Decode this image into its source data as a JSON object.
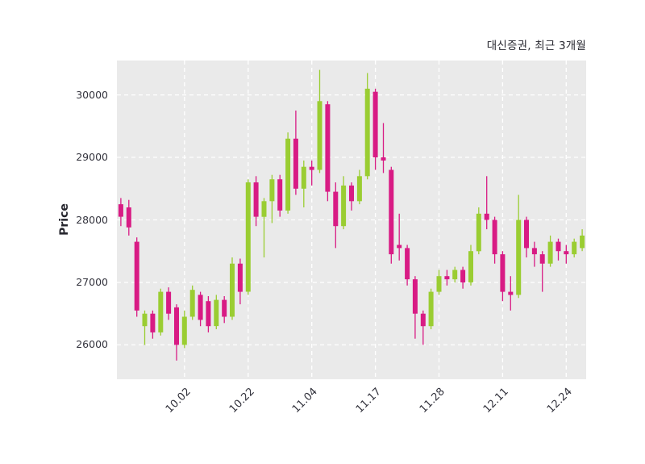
{
  "header": {
    "title": "대신증권, 최근 3개월"
  },
  "axes": {
    "ylabel": "Price"
  },
  "colors": {
    "up": "#9acd32",
    "down": "#d81b84",
    "plot_bg": "#eaeaea",
    "grid": "#ffffff",
    "text": "#33333d"
  },
  "chart_data": {
    "type": "candlestick",
    "title": "대신증권, 최근 3개월",
    "ylabel": "Price",
    "ylim": [
      25450,
      30550
    ],
    "yticks": [
      26000,
      27000,
      28000,
      29000,
      30000
    ],
    "xtick_labels": [
      "10.02",
      "10.22",
      "11.04",
      "11.17",
      "11.28",
      "12.11",
      "12.24"
    ],
    "xtick_indices": [
      8,
      16,
      24,
      32,
      40,
      48,
      56
    ],
    "grid": true,
    "legend": "none",
    "candles": [
      [
        28250,
        28350,
        27900,
        28050
      ],
      [
        28200,
        28320,
        27750,
        27880
      ],
      [
        27650,
        27720,
        26450,
        26550
      ],
      [
        26300,
        26550,
        26000,
        26500
      ],
      [
        26500,
        26550,
        26100,
        26200
      ],
      [
        26200,
        26900,
        26150,
        26850
      ],
      [
        26850,
        26920,
        26400,
        26500
      ],
      [
        26600,
        26650,
        25750,
        26000
      ],
      [
        26000,
        26550,
        25950,
        26450
      ],
      [
        26450,
        26950,
        26400,
        26880
      ],
      [
        26800,
        26850,
        26300,
        26400
      ],
      [
        26700,
        26780,
        26200,
        26300
      ],
      [
        26300,
        26800,
        26250,
        26720
      ],
      [
        26720,
        26780,
        26350,
        26450
      ],
      [
        26450,
        27400,
        26400,
        27300
      ],
      [
        27300,
        27380,
        26650,
        26850
      ],
      [
        26850,
        28650,
        26800,
        28600
      ],
      [
        28600,
        28700,
        27900,
        28050
      ],
      [
        28050,
        28350,
        27400,
        28300
      ],
      [
        28300,
        28720,
        27950,
        28650
      ],
      [
        28650,
        28720,
        28050,
        28150
      ],
      [
        28150,
        29400,
        28100,
        29300
      ],
      [
        29300,
        29750,
        28400,
        28500
      ],
      [
        28500,
        28950,
        28200,
        28850
      ],
      [
        28850,
        28950,
        28550,
        28800
      ],
      [
        28800,
        30400,
        28750,
        29900
      ],
      [
        29850,
        29900,
        28300,
        28450
      ],
      [
        28450,
        28600,
        27550,
        27900
      ],
      [
        27900,
        28700,
        27850,
        28550
      ],
      [
        28550,
        28600,
        28150,
        28300
      ],
      [
        28300,
        28800,
        28250,
        28700
      ],
      [
        28700,
        30350,
        28650,
        30100
      ],
      [
        30050,
        30100,
        28800,
        29000
      ],
      [
        29000,
        29550,
        28750,
        28950
      ],
      [
        28800,
        28850,
        27300,
        27450
      ],
      [
        27600,
        28100,
        27350,
        27550
      ],
      [
        27550,
        27600,
        26950,
        27050
      ],
      [
        27050,
        27100,
        26100,
        26500
      ],
      [
        26500,
        26550,
        26000,
        26300
      ],
      [
        26300,
        26900,
        26250,
        26850
      ],
      [
        26850,
        27200,
        26800,
        27100
      ],
      [
        27100,
        27200,
        26950,
        27050
      ],
      [
        27050,
        27250,
        27000,
        27200
      ],
      [
        27200,
        27250,
        26900,
        27000
      ],
      [
        27000,
        27600,
        26950,
        27500
      ],
      [
        27500,
        28200,
        27450,
        28100
      ],
      [
        28100,
        28700,
        27850,
        28000
      ],
      [
        28000,
        28050,
        27300,
        27450
      ],
      [
        27450,
        27500,
        26700,
        26850
      ],
      [
        26850,
        27100,
        26550,
        26800
      ],
      [
        26800,
        28400,
        26750,
        28000
      ],
      [
        28000,
        28050,
        27400,
        27550
      ],
      [
        27550,
        27650,
        27250,
        27450
      ],
      [
        27450,
        27500,
        26850,
        27300
      ],
      [
        27300,
        27750,
        27250,
        27650
      ],
      [
        27650,
        27700,
        27350,
        27500
      ],
      [
        27500,
        27600,
        27300,
        27450
      ],
      [
        27450,
        27700,
        27400,
        27650
      ],
      [
        27550,
        27850,
        27500,
        27750
      ]
    ]
  }
}
